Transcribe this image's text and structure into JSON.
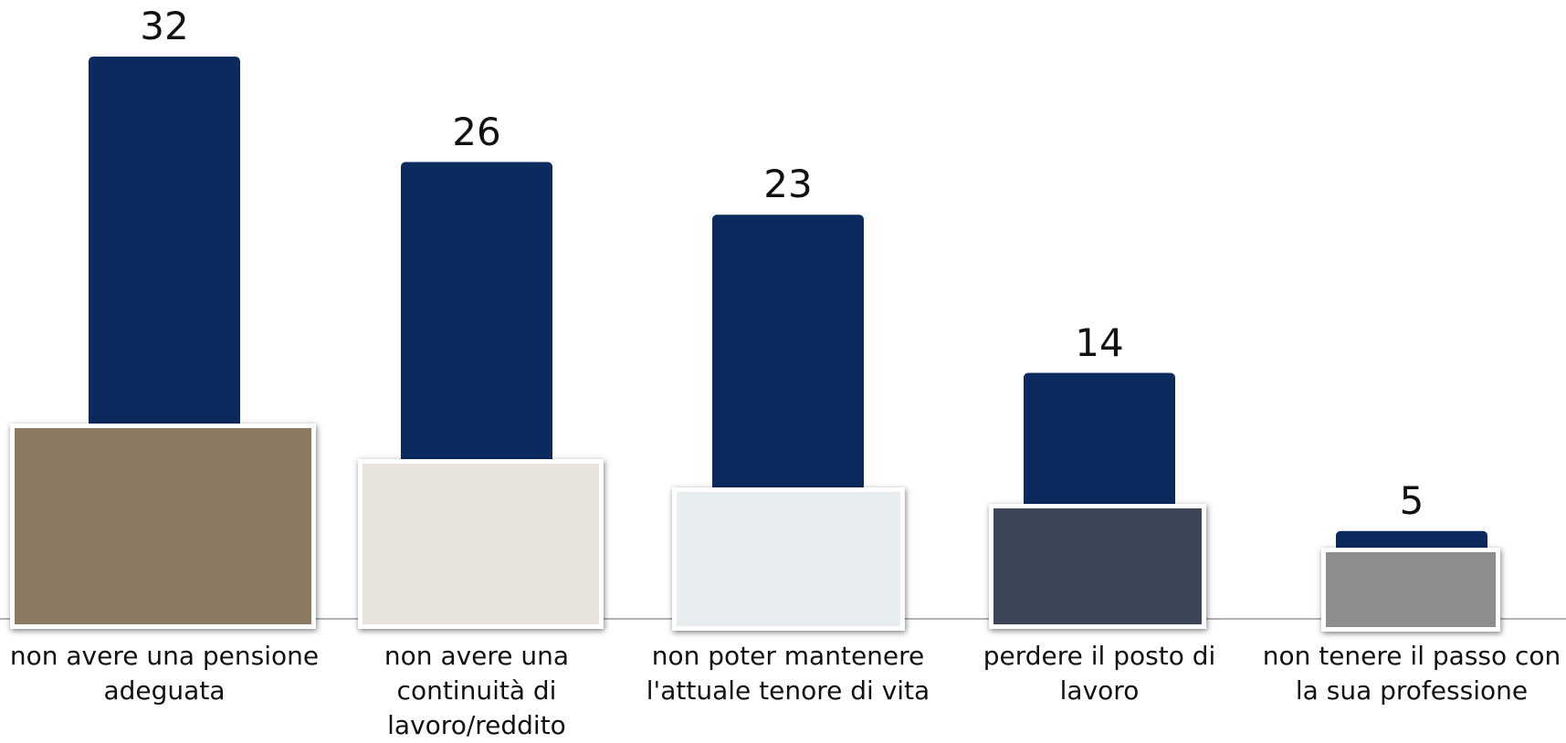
{
  "chart_data": {
    "type": "bar",
    "categories": [
      "non avere una pensione adeguata",
      "non avere una continuità di lavoro/reddito",
      "non poter mantenere l'attuale tenore di vita",
      "perdere il posto di lavoro",
      "non tenere il passo con la sua professione"
    ],
    "values": [
      32,
      26,
      23,
      14,
      5
    ],
    "color": "#0b2a5e"
  }
}
